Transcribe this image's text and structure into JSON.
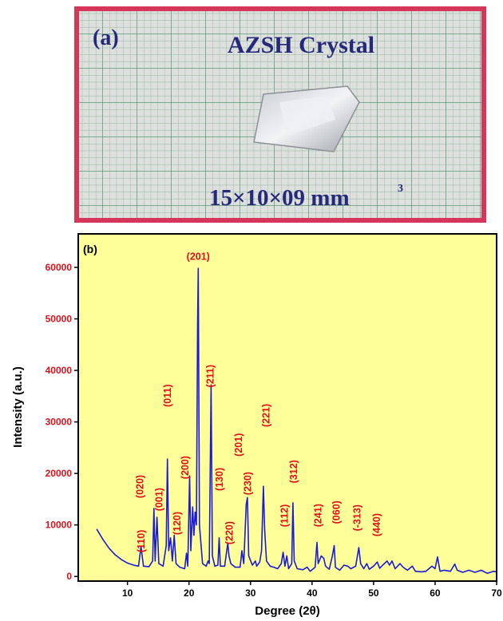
{
  "photo": {
    "panel_label": "(a)",
    "title": "AZSH Crystal",
    "dimensions": "15×10×09 mm",
    "dimensions_exponent": "3"
  },
  "chart_data": {
    "type": "line",
    "panel_label": "(b)",
    "x_label": "Degree (2θ)",
    "y_label": "Intensity (a.u.)",
    "xlim": [
      2,
      70
    ],
    "xticks": [
      10,
      20,
      30,
      40,
      50,
      60,
      70
    ],
    "ylim": [
      -900,
      66500
    ],
    "yticks": [
      0,
      10000,
      20000,
      30000,
      40000,
      50000,
      60000
    ],
    "color": "#1a1ad8",
    "background": "#ffff99",
    "ytick_color": "#e0101a",
    "annotation_color": "#e0101a",
    "x": [
      5,
      6,
      7,
      8,
      9,
      10,
      11,
      11.8,
      12.2,
      12.6,
      13.5,
      14.1,
      14.3,
      14.5,
      14.8,
      15.1,
      15.8,
      16.3,
      16.5,
      16.7,
      17.0,
      17.3,
      17.6,
      17.9,
      18.5,
      19.3,
      19.6,
      19.8,
      20.1,
      20.3,
      20.6,
      20.8,
      21.0,
      21.2,
      21.4,
      21.5,
      21.7,
      22.2,
      22.8,
      23.1,
      23.3,
      23.6,
      23.8,
      24.2,
      24.7,
      24.9,
      25.1,
      25.8,
      26.3,
      26.5,
      26.8,
      27.5,
      28.3,
      28.6,
      28.9,
      29.3,
      29.5,
      29.7,
      30.3,
      30.8,
      31.0,
      31.5,
      31.8,
      32.1,
      32.3,
      32.6,
      33.2,
      33.8,
      34.4,
      35.0,
      35.3,
      35.6,
      35.9,
      36.2,
      36.7,
      36.9,
      37.1,
      37.6,
      38.5,
      39.2,
      39.7,
      40.5,
      40.8,
      41.0,
      41.5,
      41.9,
      42.2,
      42.8,
      43.3,
      43.6,
      43.8,
      44.5,
      45.2,
      45.8,
      46.3,
      47.1,
      47.6,
      47.9,
      48.4,
      48.9,
      49.3,
      50.0,
      50.6,
      51.0,
      51.5,
      52.2,
      52.6,
      53.0,
      53.5,
      54.3,
      54.8,
      55.5,
      56.3,
      56.8,
      57.8,
      58.5,
      59.5,
      60.0,
      60.4,
      60.8,
      61.5,
      62.5,
      63.2,
      63.6,
      64.5,
      65.5,
      66.5,
      67.5,
      68.5,
      69.5,
      70
    ],
    "values": [
      9200,
      7200,
      5500,
      4200,
      3300,
      2600,
      2200,
      2000,
      5800,
      2000,
      1900,
      3000,
      13200,
      3000,
      11500,
      2500,
      2000,
      6000,
      22800,
      5000,
      7500,
      3000,
      8000,
      2500,
      1800,
      1500,
      4500,
      2000,
      19500,
      5000,
      13500,
      8000,
      12500,
      10000,
      49000,
      59800,
      10000,
      2500,
      2000,
      3000,
      2500,
      37200,
      4000,
      2000,
      2200,
      7500,
      2000,
      2000,
      6500,
      4000,
      2500,
      1800,
      1800,
      5000,
      2500,
      14000,
      15300,
      4000,
      2200,
      3000,
      2000,
      2800,
      5000,
      17500,
      9000,
      3000,
      2000,
      1800,
      1500,
      2500,
      4700,
      2000,
      4000,
      1500,
      2500,
      14300,
      3000,
      1500,
      1300,
      1800,
      1000,
      1800,
      6600,
      2500,
      4000,
      3500,
      2000,
      1400,
      4000,
      6000,
      1800,
      1200,
      2200,
      2000,
      1500,
      2000,
      5600,
      2500,
      1500,
      2500,
      1400,
      2000,
      2800,
      1600,
      2200,
      3000,
      2200,
      3000,
      1500,
      2500,
      1800,
      1200,
      2000,
      1000,
      900,
      1000,
      2000,
      1500,
      3800,
      1000,
      1200,
      1000,
      2400,
      1200,
      800,
      1200,
      800,
      1200,
      600,
      1000,
      900
    ],
    "peak_labels": [
      {
        "label": "(110)",
        "x": 12.2,
        "y": 4650
      },
      {
        "label": "(020)",
        "x": 12.0,
        "y": 15200
      },
      {
        "label": "(001)",
        "x": 15.1,
        "y": 12700
      },
      {
        "label": "(011)",
        "x": 16.5,
        "y": 32900
      },
      {
        "label": "(120)",
        "x": 18.0,
        "y": 8060
      },
      {
        "label": "(200)",
        "x": 19.3,
        "y": 18900
      },
      {
        "label": "(201)",
        "x": 21.5,
        "y": 61500,
        "horizontal": true
      },
      {
        "label": "(211)",
        "x": 23.4,
        "y": 36700
      },
      {
        "label": "(130)",
        "x": 24.9,
        "y": 16600
      },
      {
        "label": "(220)",
        "x": 26.5,
        "y": 6200
      },
      {
        "label": "(201)",
        "x": 28.0,
        "y": 23300
      },
      {
        "label": "(230)",
        "x": 29.5,
        "y": 15800
      },
      {
        "label": "(221)",
        "x": 32.5,
        "y": 29000
      },
      {
        "label": "(112)",
        "x": 35.5,
        "y": 9600
      },
      {
        "label": "(312)",
        "x": 37.0,
        "y": 18100
      },
      {
        "label": "(241)",
        "x": 40.9,
        "y": 9600
      },
      {
        "label": "(060)",
        "x": 43.9,
        "y": 10200
      },
      {
        "label": "(-313)",
        "x": 47.3,
        "y": 8800
      },
      {
        "label": "(440)",
        "x": 50.5,
        "y": 7750
      }
    ]
  }
}
